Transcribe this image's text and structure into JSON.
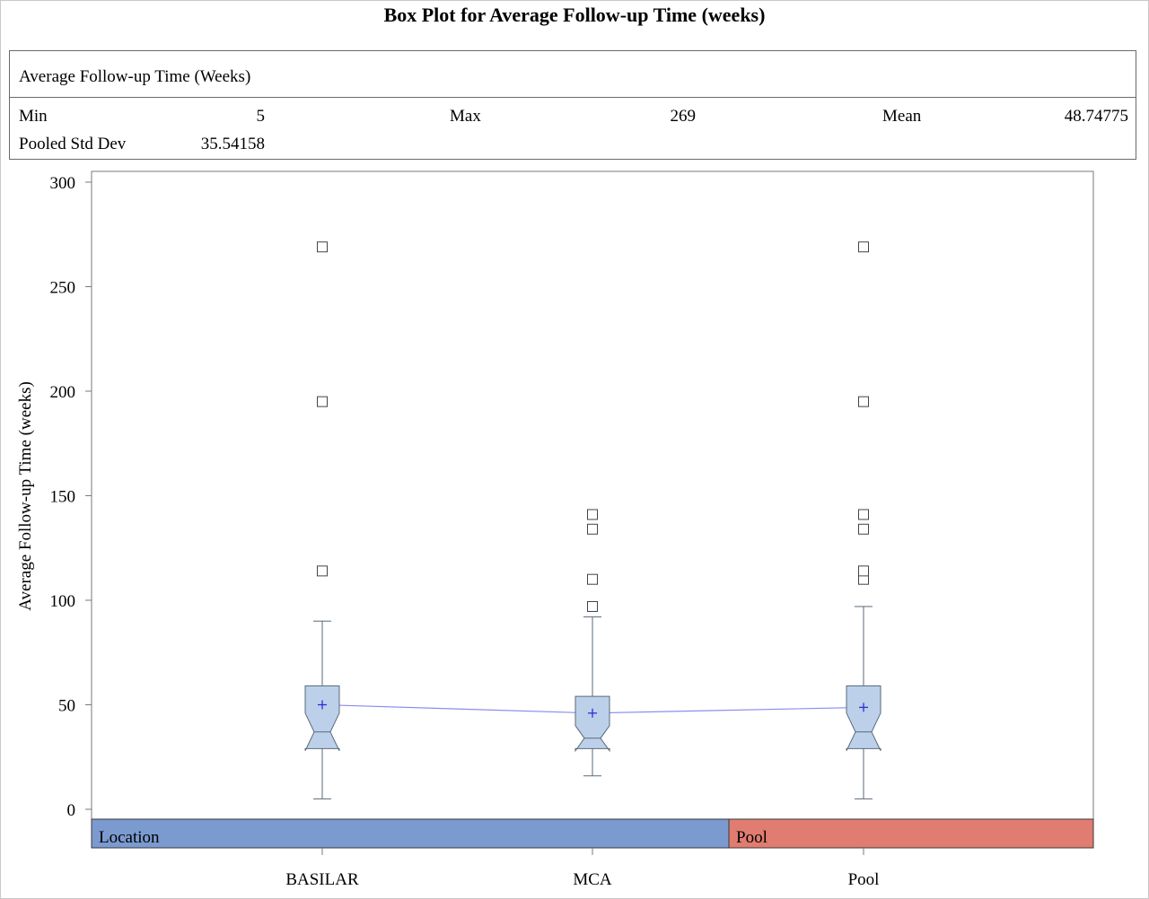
{
  "title": "Box Plot for Average Follow-up Time (weeks)",
  "stats": {
    "header": "Average Follow-up Time (Weeks)",
    "min_label": "Min",
    "min_value": "5",
    "max_label": "Max",
    "max_value": "269",
    "mean_label": "Mean",
    "mean_value": "48.74775",
    "sd_label": "Pooled Std Dev",
    "sd_value": "35.54158"
  },
  "colors": {
    "box_fill": "#bcd0ea",
    "box_stroke": "#5a6a7a",
    "mean_line": "#8b8bef",
    "mean_marker": "#2c2cdc",
    "band_location": "#7b9ad0",
    "band_pool": "#e07c70"
  },
  "chart_data": {
    "type": "box",
    "title": "Box Plot for Average Follow-up Time (weeks)",
    "ylabel": "Average Follow-up Time (weeks)",
    "xlabel": "",
    "ylim": [
      0,
      300
    ],
    "yticks": [
      0,
      50,
      100,
      150,
      200,
      250,
      300
    ],
    "notched": true,
    "grid": false,
    "categories": [
      "BASILAR",
      "MCA",
      "Pool"
    ],
    "groups": [
      {
        "category": "BASILAR",
        "whisker_low": 5,
        "q1": 29,
        "median": 37,
        "q3": 59,
        "whisker_high": 90,
        "notch_low": 28,
        "notch_high": 46,
        "mean": 50,
        "outliers": [
          114,
          195,
          269
        ]
      },
      {
        "category": "MCA",
        "whisker_low": 16,
        "q1": 29,
        "median": 34,
        "q3": 54,
        "whisker_high": 92,
        "notch_low": 28,
        "notch_high": 40,
        "mean": 46,
        "outliers": [
          97,
          110,
          134,
          141
        ]
      },
      {
        "category": "Pool",
        "whisker_low": 5,
        "q1": 29,
        "median": 37,
        "q3": 59,
        "whisker_high": 97,
        "notch_low": 28,
        "notch_high": 46,
        "mean": 48.75,
        "outliers": [
          110,
          114,
          134,
          141,
          195,
          269
        ]
      }
    ],
    "bands": [
      {
        "label": "Location",
        "categories": [
          "BASILAR",
          "MCA"
        ]
      },
      {
        "label": "Pool",
        "categories": [
          "Pool"
        ]
      }
    ]
  }
}
